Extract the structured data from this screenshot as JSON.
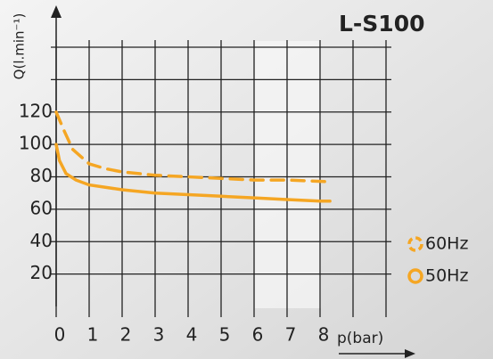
{
  "chart_data": {
    "type": "line",
    "title": "L-S100",
    "y_label": "Q(l.min⁻¹)",
    "x_label": "p(bar)",
    "xlim": [
      0,
      10
    ],
    "ylim": [
      0,
      160
    ],
    "xticks": [
      0,
      1,
      2,
      3,
      4,
      5,
      6,
      7,
      8,
      {
        "value": 9,
        "label": null
      },
      {
        "value": 10,
        "label": null
      }
    ],
    "yticks": [
      20,
      40,
      60,
      80,
      100,
      120,
      {
        "value": 140,
        "label": null
      },
      {
        "value": 160,
        "label": null
      }
    ],
    "grid": true,
    "series": [
      {
        "name": "60Hz",
        "color": "#f5a623",
        "dashed": true,
        "x": [
          0,
          0.25,
          0.5,
          1,
          1.5,
          2,
          3,
          4,
          5,
          6,
          7,
          8.3
        ],
        "values": [
          120,
          108,
          97,
          88,
          85,
          83,
          81,
          80,
          79,
          78,
          78,
          77
        ]
      },
      {
        "name": "50Hz",
        "color": "#f5a623",
        "dashed": false,
        "x": [
          0,
          0.1,
          0.3,
          0.6,
          1,
          2,
          3,
          4,
          5,
          6,
          7,
          8,
          8.3
        ],
        "values": [
          100,
          90,
          82,
          78,
          75,
          72,
          70,
          69,
          68,
          67,
          66,
          65,
          65
        ]
      }
    ]
  }
}
